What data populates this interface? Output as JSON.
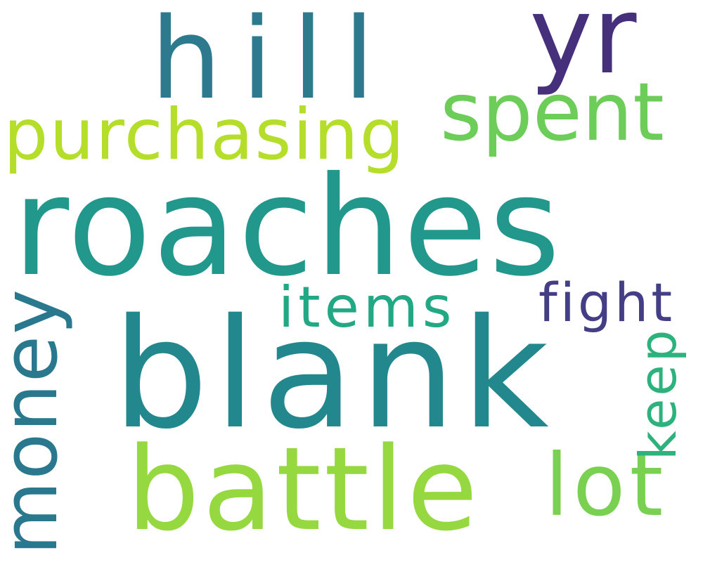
{
  "colors": {
    "background": "#ffffff"
  },
  "words": [
    {
      "id": "hill",
      "text": "hill",
      "color": "#2d7a8e",
      "orientation": "horizontal"
    },
    {
      "id": "yr",
      "text": "yr",
      "color": "#46307c",
      "orientation": "horizontal"
    },
    {
      "id": "spent",
      "text": "spent",
      "color": "#6dcd59",
      "orientation": "horizontal"
    },
    {
      "id": "purchasing",
      "text": "purchasing",
      "color": "#b5de2b",
      "orientation": "horizontal"
    },
    {
      "id": "roaches",
      "text": "roaches",
      "color": "#22978c",
      "orientation": "horizontal"
    },
    {
      "id": "items",
      "text": "items",
      "color": "#22a884",
      "orientation": "horizontal"
    },
    {
      "id": "fight",
      "text": "fight",
      "color": "#433e85",
      "orientation": "horizontal"
    },
    {
      "id": "blank",
      "text": "blank",
      "color": "#23888e",
      "orientation": "horizontal"
    },
    {
      "id": "battle",
      "text": "battle",
      "color": "#95d840",
      "orientation": "horizontal"
    },
    {
      "id": "lot",
      "text": "lot",
      "color": "#7ad151",
      "orientation": "horizontal"
    },
    {
      "id": "money",
      "text": "money",
      "color": "#2a788e",
      "orientation": "vertical"
    },
    {
      "id": "keep",
      "text": "keep",
      "color": "#2db27d",
      "orientation": "vertical"
    }
  ]
}
